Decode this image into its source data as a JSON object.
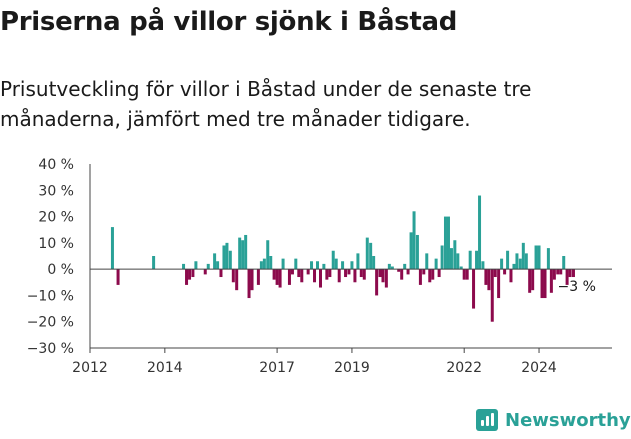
{
  "header": {
    "title": "Priserna på villor sjönk i Båstad",
    "subtitle": "Prisutveckling för villor i Båstad under de senaste tre månaderna, jämfört med tre månader tidigare."
  },
  "brand": {
    "name": "Newsworthy",
    "icon": "bar-chart-icon"
  },
  "colors": {
    "positive": "#2aa197",
    "negative": "#8c0a4c",
    "axis": "#333333"
  },
  "chart_data": {
    "type": "bar",
    "title": "Priserna på villor sjönk i Båstad",
    "ylabel": "",
    "xlabel": "",
    "ylim": [
      -30,
      40
    ],
    "xlim": [
      2012.0,
      2025.95
    ],
    "y_ticks": [
      40,
      30,
      20,
      10,
      0,
      -10,
      -20,
      -30
    ],
    "y_tick_labels": [
      "40 %",
      "30 %",
      "20 %",
      "10 %",
      "0 %",
      "−10 %",
      "−20 %",
      "−30 %"
    ],
    "x_ticks": [
      2012,
      2014,
      2017,
      2019,
      2022,
      2024
    ],
    "x_tick_labels": [
      "2012",
      "2014",
      "2017",
      "2019",
      "2022",
      "2024"
    ],
    "end_label": "−3 %",
    "grid": false,
    "series": [
      {
        "x": [
          2012.6,
          2012.75,
          2013.7,
          2014.5,
          2014.58,
          2014.66,
          2014.75,
          2014.83,
          2015.08,
          2015.16,
          2015.33,
          2015.41,
          2015.5,
          2015.58,
          2015.66,
          2015.75,
          2015.83,
          2015.92,
          2016.0,
          2016.08,
          2016.16,
          2016.25,
          2016.33,
          2016.5,
          2016.58,
          2016.66,
          2016.75,
          2016.83,
          2016.92,
          2017.0,
          2017.08,
          2017.16,
          2017.33,
          2017.41,
          2017.5,
          2017.58,
          2017.66,
          2017.83,
          2017.92,
          2018.0,
          2018.08,
          2018.16,
          2018.25,
          2018.33,
          2018.41,
          2018.5,
          2018.58,
          2018.66,
          2018.75,
          2018.83,
          2018.92,
          2019.0,
          2019.08,
          2019.16,
          2019.25,
          2019.33,
          2019.41,
          2019.5,
          2019.58,
          2019.66,
          2019.75,
          2019.83,
          2019.92,
          2020.0,
          2020.08,
          2020.25,
          2020.33,
          2020.41,
          2020.5,
          2020.58,
          2020.66,
          2020.75,
          2020.83,
          2020.92,
          2021.0,
          2021.08,
          2021.16,
          2021.25,
          2021.33,
          2021.41,
          2021.5,
          2021.58,
          2021.66,
          2021.75,
          2021.83,
          2021.92,
          2022.0,
          2022.08,
          2022.16,
          2022.25,
          2022.33,
          2022.41,
          2022.5,
          2022.58,
          2022.66,
          2022.75,
          2022.83,
          2022.92,
          2023.0,
          2023.08,
          2023.16,
          2023.25,
          2023.33,
          2023.41,
          2023.5,
          2023.58,
          2023.66,
          2023.75,
          2023.83,
          2023.92,
          2024.0,
          2024.08,
          2024.16,
          2024.25,
          2024.33,
          2024.41,
          2024.5,
          2024.58,
          2024.66,
          2024.75,
          2024.83,
          2024.92
        ],
        "values": [
          16,
          -6,
          5,
          2,
          -6,
          -4,
          -3,
          3,
          -2,
          2,
          6,
          3,
          -3,
          9,
          10,
          7,
          -5,
          -8,
          12,
          11,
          13,
          -11,
          -8,
          -6,
          3,
          4,
          11,
          5,
          -4,
          -6,
          -7,
          4,
          -6,
          -2,
          4,
          -3,
          -5,
          -2,
          3,
          -5,
          3,
          -7,
          2,
          -4,
          -3,
          7,
          4,
          -5,
          3,
          -3,
          -2,
          3,
          -5,
          6,
          -3,
          -4,
          12,
          10,
          5,
          -10,
          -3,
          -5,
          -7,
          2,
          1,
          -1,
          -4,
          2,
          -2,
          14,
          22,
          13,
          -6,
          -2,
          6,
          -5,
          -4,
          4,
          -3,
          9,
          20,
          20,
          8,
          11,
          6,
          1,
          -4,
          -4,
          7,
          -15,
          7,
          28,
          3,
          -6,
          -8,
          -20,
          -3,
          -11,
          4,
          -2,
          7,
          -5,
          2,
          6,
          4,
          10,
          6,
          -9,
          -8,
          9,
          9,
          -11,
          -11,
          8,
          -9,
          -4,
          -2,
          -2,
          5,
          -6,
          -3,
          -3
        ]
      }
    ]
  }
}
